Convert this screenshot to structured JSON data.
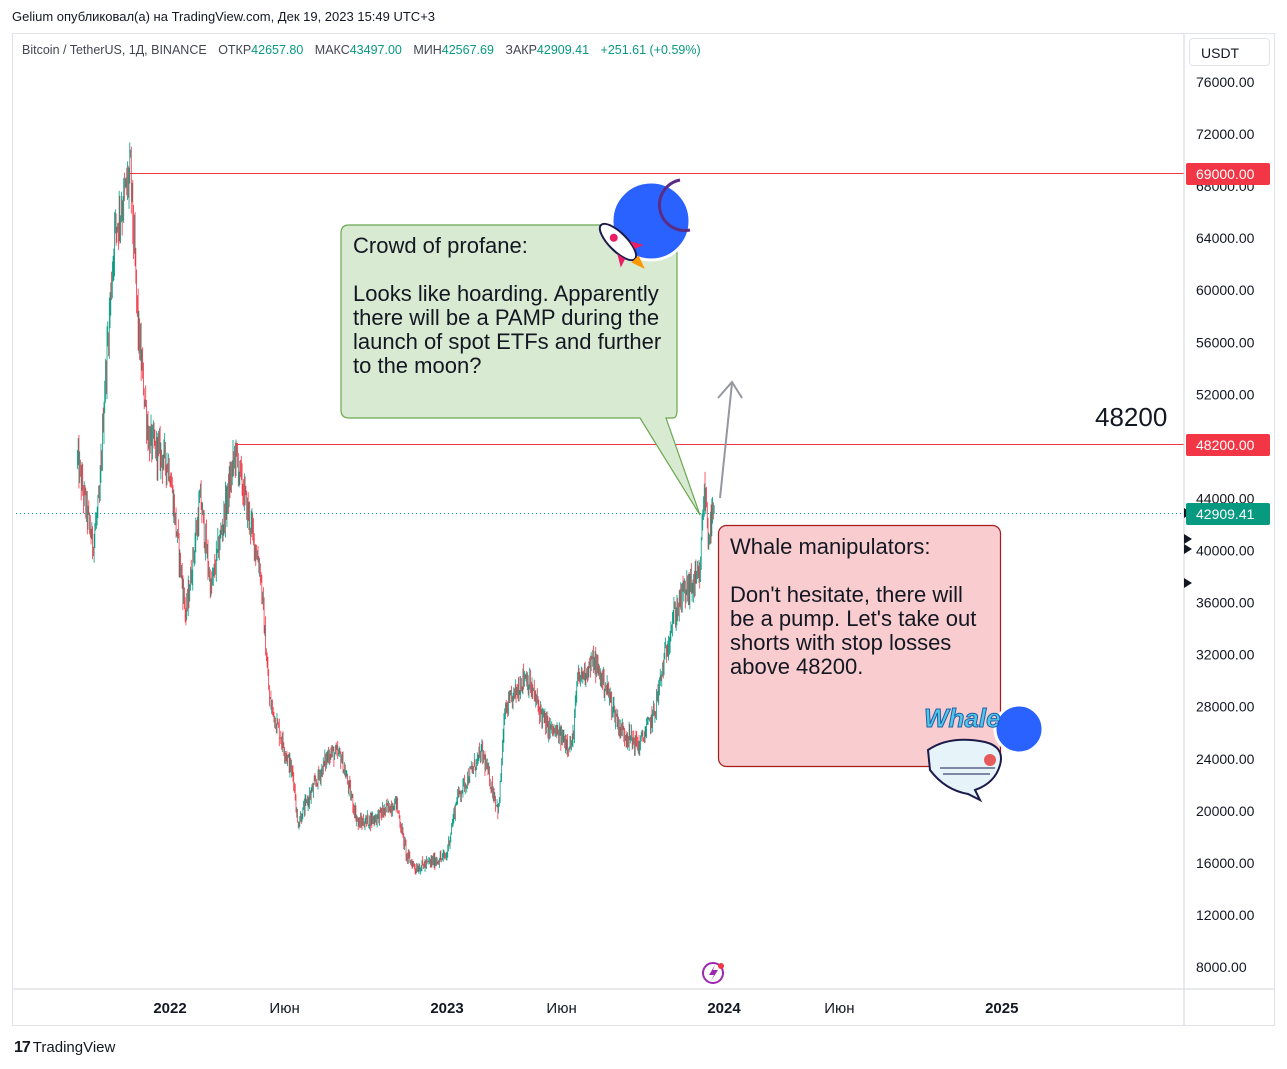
{
  "meta": {
    "publisher_line": "Gelium опубликовал(а) на TradingView.com, Дек 19, 2023 15:49 UTC+3"
  },
  "header": {
    "symbol": "Bitcoin / TetherUS, 1Д, BINANCE",
    "open_label": "ОТКР",
    "open_value": "42657.80",
    "high_label": "МАКС",
    "high_value": "43497.00",
    "low_label": "МИН",
    "low_value": "42567.69",
    "close_label": "ЗАКР",
    "close_value": "42909.41",
    "change": "+251.61 (+0.59%)"
  },
  "price_axis": {
    "currency": "USDT",
    "ticks": [
      "76000.00",
      "72000.00",
      "68000.00",
      "64000.00",
      "60000.00",
      "56000.00",
      "52000.00",
      "48000.00",
      "44000.00",
      "40000.00",
      "36000.00",
      "32000.00",
      "28000.00",
      "24000.00",
      "20000.00",
      "16000.00",
      "12000.00",
      "8000.00"
    ]
  },
  "time_axis": {
    "ticks": [
      "2022",
      "Июн",
      "2023",
      "Июн",
      "2024",
      "Июн",
      "2025"
    ]
  },
  "levels": {
    "ath": "69000.00",
    "resistance": "48200.00",
    "resistance_label": "48200",
    "last_price": "42909.41"
  },
  "annotations": {
    "crowd": "Crowd of profane:\n\nLooks like hoarding. Apparently there will be a PAMP during the launch of spot ETFs and further to the moon?",
    "whale": "Whale manipulators:\n\nDon't hesitate, there will be a pump. Let's take out shorts with stop losses above 48200.",
    "whale_logo_text": "Whale"
  },
  "footer": {
    "brand": "TradingView"
  },
  "colors": {
    "up": "#089981",
    "down": "#f23645",
    "level": "#f23645",
    "green_bubble_fill": "#d9ead3",
    "green_bubble_stroke": "#6aa84f",
    "red_bubble_fill": "#f9cdcf",
    "red_bubble_stroke": "#a61c1c"
  },
  "chart_data": {
    "type": "candlestick",
    "title": "",
    "xlabel": "",
    "ylabel": "",
    "x_range": [
      "2021-09",
      "2025-04"
    ],
    "ylim": [
      5000,
      79000
    ],
    "grid": false,
    "path_points": [
      [
        "2021-09-01",
        47000
      ],
      [
        "2021-09-07",
        45000
      ],
      [
        "2021-09-21",
        40500
      ],
      [
        "2021-09-30",
        43800
      ],
      [
        "2021-10-06",
        51500
      ],
      [
        "2021-10-20",
        64500
      ],
      [
        "2021-11-10",
        69000
      ],
      [
        "2021-11-20",
        57000
      ],
      [
        "2021-12-04",
        48500
      ],
      [
        "2021-12-31",
        46500
      ],
      [
        "2022-01-22",
        35000
      ],
      [
        "2022-02-10",
        44000
      ],
      [
        "2022-02-24",
        37000
      ],
      [
        "2022-03-28",
        47500
      ],
      [
        "2022-04-30",
        38500
      ],
      [
        "2022-05-12",
        28500
      ],
      [
        "2022-06-13",
        22500
      ],
      [
        "2022-06-18",
        19000
      ],
      [
        "2022-07-30",
        24500
      ],
      [
        "2022-08-14",
        24200
      ],
      [
        "2022-09-06",
        19000
      ],
      [
        "2022-09-30",
        19500
      ],
      [
        "2022-10-26",
        20700
      ],
      [
        "2022-11-09",
        16500
      ],
      [
        "2022-11-21",
        15600
      ],
      [
        "2022-12-31",
        16500
      ],
      [
        "2023-01-14",
        21000
      ],
      [
        "2023-02-16",
        24500
      ],
      [
        "2023-03-10",
        20000
      ],
      [
        "2023-03-18",
        27500
      ],
      [
        "2023-04-14",
        30500
      ],
      [
        "2023-05-12",
        26500
      ],
      [
        "2023-06-15",
        25000
      ],
      [
        "2023-06-22",
        30000
      ],
      [
        "2023-07-13",
        31500
      ],
      [
        "2023-07-31",
        29300
      ],
      [
        "2023-08-17",
        26300
      ],
      [
        "2023-09-11",
        25000
      ],
      [
        "2023-10-01",
        27500
      ],
      [
        "2023-10-24",
        34500
      ],
      [
        "2023-11-09",
        36800
      ],
      [
        "2023-11-30",
        37800
      ],
      [
        "2023-12-05",
        44000
      ],
      [
        "2023-12-08",
        44200
      ],
      [
        "2023-12-11",
        41200
      ],
      [
        "2023-12-19",
        42909
      ]
    ]
  }
}
